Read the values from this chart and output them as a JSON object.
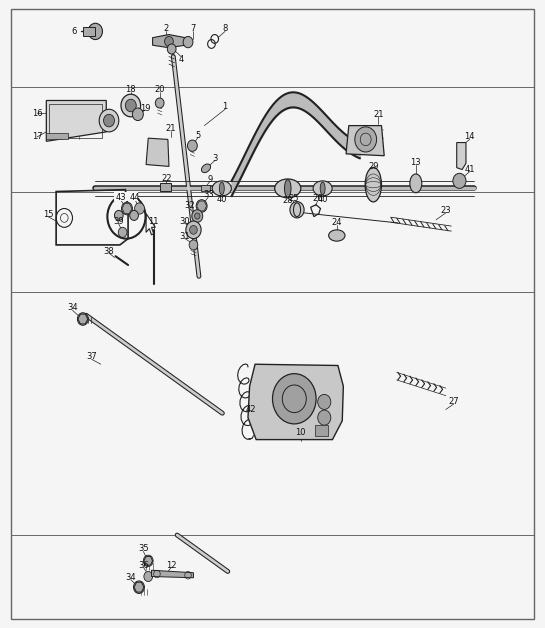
{
  "bg_color": "#f5f5f5",
  "border_color": "#666666",
  "fig_width": 5.45,
  "fig_height": 6.28,
  "dpi": 100,
  "hline_y": [
    0.148,
    0.535,
    0.695,
    0.862
  ],
  "border": [
    0.02,
    0.015,
    0.98,
    0.985
  ]
}
